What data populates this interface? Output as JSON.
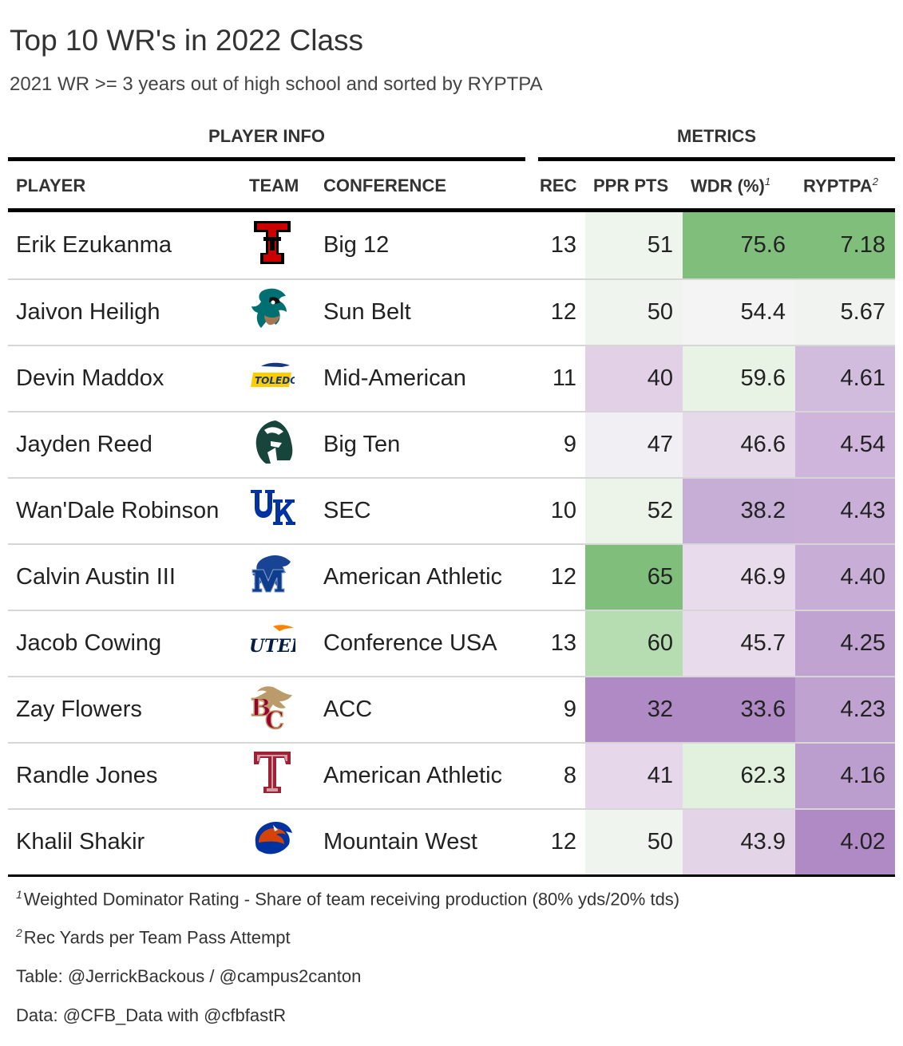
{
  "title": "Top 10 WR's in 2022 Class",
  "subtitle": "2021 WR >= 3 years out of high school and sorted by RYPTPA",
  "spanners": {
    "player_info": "PLAYER INFO",
    "metrics": "METRICS"
  },
  "columns": {
    "player": "PLAYER",
    "team": "TEAM",
    "conference": "CONFERENCE",
    "rec": "REC",
    "ppr": "PPR PTS",
    "wdr": "WDR (%)",
    "wdr_mark": "1",
    "ryptpa": "RYPTPA",
    "ryptpa_mark": "2"
  },
  "footnotes": {
    "wdr_mark": "1",
    "wdr": "Weighted Dominator Rating - Share of team receiving production (80% yds/20% tds)",
    "ryptpa_mark": "2",
    "ryptpa": "Rec Yards per Team Pass Attempt"
  },
  "source_notes": [
    "Table: @JerrickBackous / @campus2canton",
    "Data: @CFB_Data with @cfbfastR"
  ],
  "colors": {
    "scale_low": "#b08ac4",
    "scale_mid": "#f4f4f4",
    "scale_high": "#7fbf7b"
  },
  "chart_data": {
    "type": "table",
    "rows": [
      {
        "player": "Erik Ezukanma",
        "team_logo": "texas-tech-logo",
        "conference": "Big 12",
        "rec": 13,
        "ppr": 51,
        "wdr": "75.6",
        "ryptpa": "7.18",
        "colors": [
          "#eef5ec",
          "#7fbf7b",
          "#7fbf7b"
        ]
      },
      {
        "player": "Jaivon Heiligh",
        "team_logo": "coastal-carolina-logo",
        "conference": "Sun Belt",
        "rec": 12,
        "ppr": 50,
        "wdr": "54.4",
        "ryptpa": "5.67",
        "colors": [
          "#f0f4ef",
          "#f4f4f4",
          "#f1f3f1"
        ]
      },
      {
        "player": "Devin Maddox",
        "team_logo": "toledo-logo",
        "conference": "Mid-American",
        "rec": 11,
        "ppr": 40,
        "wdr": "59.6",
        "ryptpa": "4.61",
        "colors": [
          "#e2d0e7",
          "#e8f2e5",
          "#d2bcde"
        ]
      },
      {
        "player": "Jayden Reed",
        "team_logo": "michigan-state-logo",
        "conference": "Big Ten",
        "rec": 9,
        "ppr": 47,
        "wdr": "46.6",
        "ryptpa": "4.54",
        "colors": [
          "#f1eff3",
          "#e6d9ea",
          "#cfb5db"
        ]
      },
      {
        "player": "Wan'Dale Robinson",
        "team_logo": "kentucky-logo",
        "conference": "SEC",
        "rec": 10,
        "ppr": 52,
        "wdr": "38.2",
        "ryptpa": "4.43",
        "colors": [
          "#ecf4ea",
          "#c6aed6",
          "#c9afd7"
        ]
      },
      {
        "player": "Calvin Austin III",
        "team_logo": "memphis-logo",
        "conference": "American Athletic",
        "rec": 12,
        "ppr": 65,
        "wdr": "46.9",
        "ryptpa": "4.40",
        "colors": [
          "#7fbf7b",
          "#e8dbeb",
          "#c8aed7"
        ]
      },
      {
        "player": "Jacob Cowing",
        "team_logo": "utep-logo",
        "conference": "Conference USA",
        "rec": 13,
        "ppr": 60,
        "wdr": "45.7",
        "ryptpa": "4.25",
        "colors": [
          "#b6dcb1",
          "#e8dbeb",
          "#c0a3d1"
        ]
      },
      {
        "player": "Zay Flowers",
        "team_logo": "boston-college-logo",
        "conference": "ACC",
        "rec": 9,
        "ppr": 32,
        "wdr": "33.6",
        "ryptpa": "4.23",
        "colors": [
          "#b08ac4",
          "#b08ac4",
          "#bfa2d0"
        ]
      },
      {
        "player": "Randle Jones",
        "team_logo": "temple-logo",
        "conference": "American Athletic",
        "rec": 8,
        "ppr": 41,
        "wdr": "62.3",
        "ryptpa": "4.16",
        "colors": [
          "#e6d7ea",
          "#e2f1dd",
          "#bc9ece"
        ]
      },
      {
        "player": "Khalil Shakir",
        "team_logo": "boise-state-logo",
        "conference": "Mountain West",
        "rec": 12,
        "ppr": 50,
        "wdr": "43.9",
        "ryptpa": "4.02",
        "colors": [
          "#f0f4ef",
          "#e4d4e8",
          "#b08ac4"
        ]
      }
    ]
  }
}
